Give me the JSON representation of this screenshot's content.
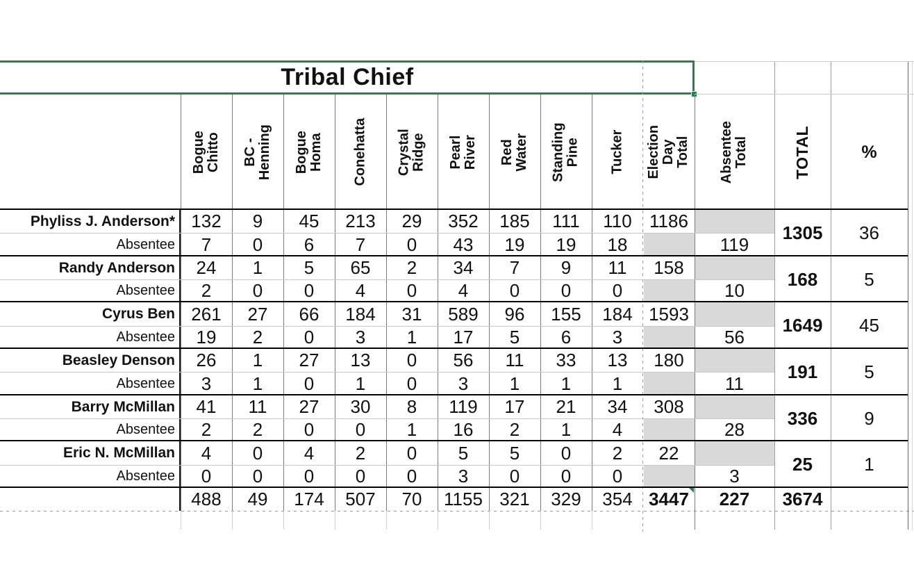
{
  "title": "Tribal Chief",
  "columns": [
    "Bogue\nChitto",
    "BC -\nHenning",
    "Bogue\nHoma",
    "Conehatta",
    "Crystal\nRidge",
    "Pearl\nRiver",
    "Red\nWater",
    "Standing\nPine",
    "Tucker"
  ],
  "summary_columns": {
    "election_day_total": "Election\nDay Total",
    "absentee_total": "Absentee\nTotal",
    "total": "TOTAL",
    "percent": "%"
  },
  "absentee_row_label": "Absentee",
  "candidates": [
    {
      "name": "Phyliss J. Anderson*",
      "election_day": [
        132,
        9,
        45,
        213,
        29,
        352,
        185,
        111,
        110
      ],
      "election_day_total": 1186,
      "absentee": [
        7,
        0,
        6,
        7,
        0,
        43,
        19,
        19,
        18
      ],
      "absentee_total": 119,
      "total": 1305,
      "percent": 36
    },
    {
      "name": "Randy Anderson",
      "election_day": [
        24,
        1,
        5,
        65,
        2,
        34,
        7,
        9,
        11
      ],
      "election_day_total": 158,
      "absentee": [
        2,
        0,
        0,
        4,
        0,
        4,
        0,
        0,
        0
      ],
      "absentee_total": 10,
      "total": 168,
      "percent": 5
    },
    {
      "name": "Cyrus Ben",
      "election_day": [
        261,
        27,
        66,
        184,
        31,
        589,
        96,
        155,
        184
      ],
      "election_day_total": 1593,
      "absentee": [
        19,
        2,
        0,
        3,
        1,
        17,
        5,
        6,
        3
      ],
      "absentee_total": 56,
      "total": 1649,
      "percent": 45
    },
    {
      "name": "Beasley Denson",
      "election_day": [
        26,
        1,
        27,
        13,
        0,
        56,
        11,
        33,
        13
      ],
      "election_day_total": 180,
      "absentee": [
        3,
        1,
        0,
        1,
        0,
        3,
        1,
        1,
        1
      ],
      "absentee_total": 11,
      "total": 191,
      "percent": 5
    },
    {
      "name": "Barry McMillan",
      "election_day": [
        41,
        11,
        27,
        30,
        8,
        119,
        17,
        21,
        34
      ],
      "election_day_total": 308,
      "absentee": [
        2,
        2,
        0,
        0,
        1,
        16,
        2,
        1,
        4
      ],
      "absentee_total": 28,
      "total": 336,
      "percent": 9
    },
    {
      "name": "Eric N. McMillan",
      "election_day": [
        4,
        0,
        4,
        2,
        0,
        5,
        5,
        0,
        2
      ],
      "election_day_total": 22,
      "absentee": [
        0,
        0,
        0,
        0,
        0,
        3,
        0,
        0,
        0
      ],
      "absentee_total": 3,
      "total": 25,
      "percent": 1
    }
  ],
  "totals": {
    "precincts": [
      488,
      49,
      174,
      507,
      70,
      1155,
      321,
      329,
      354
    ],
    "election_day_total": 3447,
    "absentee_total": 227,
    "grand_total": 3674
  },
  "colors": {
    "selection_green": "#2e7d4f",
    "shaded_cell": "#d9d9d9",
    "group_border": "#000000",
    "gridline": "#c6c6c6"
  }
}
